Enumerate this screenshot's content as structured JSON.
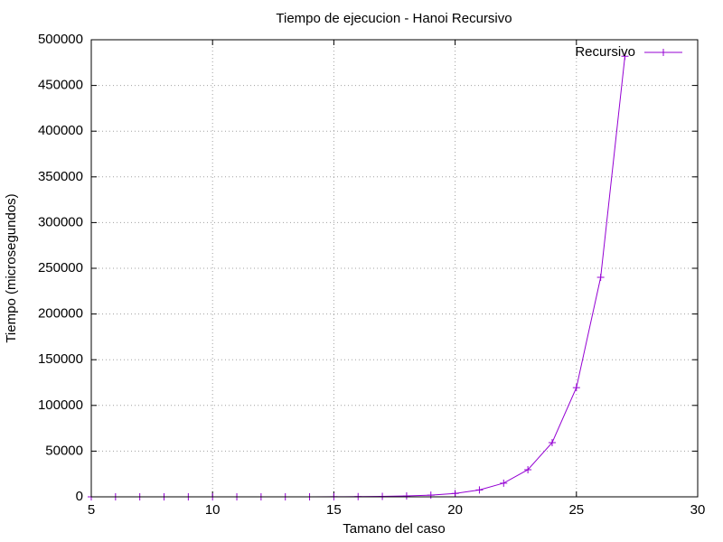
{
  "chart_data": {
    "type": "line",
    "title": "Tiempo de ejecucion - Hanoi Recursivo",
    "x_label": "Tamano del caso",
    "y_label": "Tiempo (microsegundos)",
    "x": [
      5,
      6,
      7,
      8,
      9,
      10,
      11,
      12,
      13,
      14,
      15,
      16,
      17,
      18,
      19,
      20,
      21,
      22,
      23,
      24,
      25,
      26,
      27
    ],
    "series": [
      {
        "name": "Recursivo",
        "color": "#9400d3",
        "values": [
          0,
          0,
          0,
          1,
          2,
          4,
          7,
          15,
          30,
          60,
          120,
          240,
          470,
          950,
          1900,
          3700,
          7500,
          15000,
          29700,
          59300,
          119500,
          240100,
          482000
        ]
      }
    ],
    "xlim": [
      5,
      30
    ],
    "xticks": [
      5,
      10,
      15,
      20,
      25,
      30
    ],
    "ylim": [
      0,
      500000
    ],
    "yticks": [
      0,
      50000,
      100000,
      150000,
      200000,
      250000,
      300000,
      350000,
      400000,
      450000,
      500000
    ],
    "grid": true,
    "legend": "top-right"
  }
}
